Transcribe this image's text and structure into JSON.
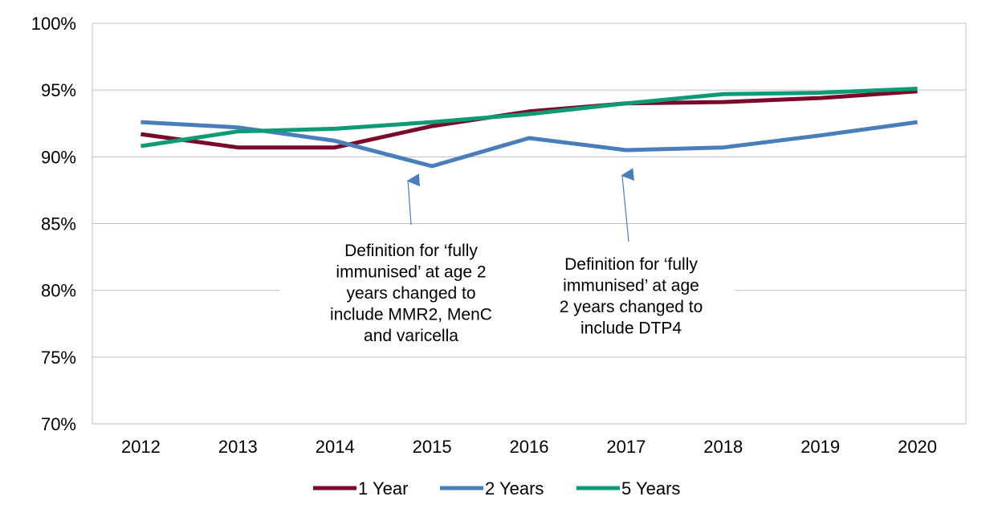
{
  "chart_data": {
    "type": "line",
    "title": "",
    "xlabel": "",
    "ylabel": "",
    "categories": [
      "2012",
      "2013",
      "2014",
      "2015",
      "2016",
      "2017",
      "2018",
      "2019",
      "2020"
    ],
    "ylim": [
      70,
      100
    ],
    "yticks": [
      70,
      75,
      80,
      85,
      90,
      95,
      100
    ],
    "ytick_labels": [
      "70%",
      "75%",
      "80%",
      "85%",
      "90%",
      "95%",
      "100%"
    ],
    "grid": true,
    "legend_position": "bottom",
    "series": [
      {
        "name": "1 Year",
        "color": "#7b0a2a",
        "values": [
          91.7,
          90.7,
          90.7,
          92.3,
          93.4,
          94.0,
          94.1,
          94.4,
          94.9
        ]
      },
      {
        "name": "2 Years",
        "color": "#4a7ebb",
        "values": [
          92.6,
          92.2,
          91.2,
          89.3,
          91.4,
          90.5,
          90.7,
          91.6,
          92.6
        ]
      },
      {
        "name": "5 Years",
        "color": "#0d9b76",
        "values": [
          90.8,
          91.9,
          92.1,
          92.6,
          93.2,
          94.0,
          94.7,
          94.8,
          95.1
        ]
      }
    ],
    "annotations": [
      {
        "lines": [
          "Definition for ‘fully",
          "immunised’ at age 2",
          "years changed to",
          "include MMR2, MenC",
          "and varicella"
        ],
        "target_year": "2015",
        "target_value": 88.2
      },
      {
        "lines": [
          "Definition for ‘fully",
          "immunised’ at age",
          "2 years changed to",
          "include DTP4"
        ],
        "target_year": "2017",
        "target_value": 88.6
      }
    ]
  }
}
